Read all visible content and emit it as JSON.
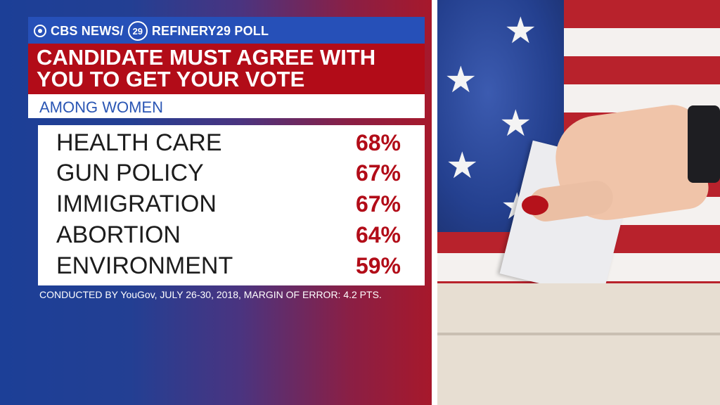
{
  "header": {
    "brand_left": "CBS NEWS/",
    "r29_mark": "29",
    "brand_right": "REFINERY29 POLL"
  },
  "title_lines": [
    "CANDIDATE MUST AGREE WITH",
    "YOU TO GET YOUR VOTE"
  ],
  "subtitle": "AMONG WOMEN",
  "rows": [
    {
      "label": "HEALTH CARE",
      "value_text": "68%"
    },
    {
      "label": "GUN POLICY",
      "value_text": "67%"
    },
    {
      "label": "IMMIGRATION",
      "value_text": "67%"
    },
    {
      "label": "ABORTION",
      "value_text": "64%"
    },
    {
      "label": "ENVIRONMENT",
      "value_text": "59%"
    }
  ],
  "footnote": "CONDUCTED BY YouGov, JULY 26-30, 2018, MARGIN OF ERROR: 4.2 PTS.",
  "colors": {
    "accent_red": "#b20c18",
    "accent_blue": "#2650b8",
    "subtitle_blue": "#2a56b4"
  },
  "chart_data": {
    "type": "table",
    "title": "CANDIDATE MUST AGREE WITH YOU TO GET YOUR VOTE",
    "subtitle": "AMONG WOMEN",
    "categories": [
      "HEALTH CARE",
      "GUN POLICY",
      "IMMIGRATION",
      "ABORTION",
      "ENVIRONMENT"
    ],
    "values": [
      68,
      67,
      67,
      64,
      59
    ],
    "unit": "%"
  }
}
